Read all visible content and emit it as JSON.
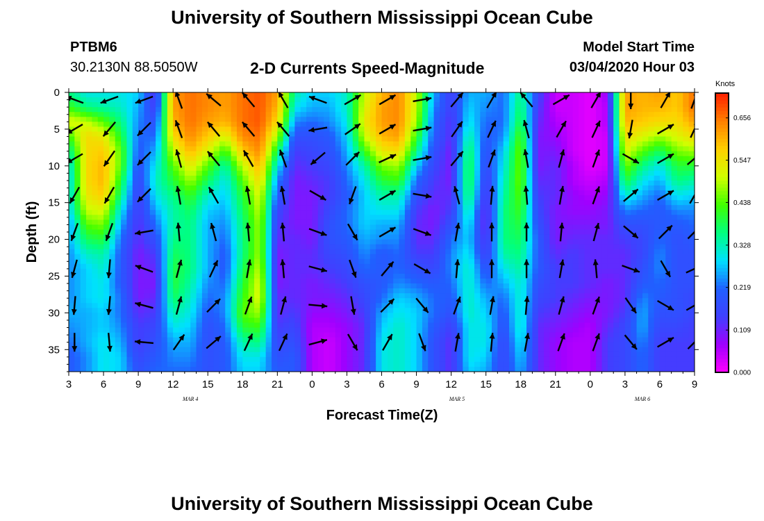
{
  "header": {
    "title": "University of Southern Mississippi Ocean Cube",
    "station_id": "PTBM6",
    "station_coords": "30.2130N 88.5050W",
    "plot_title": "2-D Currents Speed-Magnitude",
    "model_start_label": "Model Start Time",
    "model_start_value": "03/04/2020 Hour 03"
  },
  "footer": {
    "title": "University of Southern Mississippi Ocean Cube"
  },
  "colors": {
    "colormap": [
      "#ff00ff",
      "#a000ff",
      "#4040ff",
      "#2060ff",
      "#00e0ff",
      "#00ff80",
      "#40ff00",
      "#d0ff00",
      "#ffd000",
      "#ff8000",
      "#ff2000"
    ],
    "arrow": "#000000"
  },
  "chart_data": {
    "type": "heatmap",
    "xlabel": "Forecast Time(Z)",
    "ylabel": "Depth (ft)",
    "x_tick_labels": [
      "3",
      "6",
      "9",
      "12",
      "15",
      "18",
      "21",
      "0",
      "3",
      "6",
      "9",
      "12",
      "15",
      "18",
      "21",
      "0",
      "3",
      "6",
      "9"
    ],
    "x_range_hours": [
      3,
      57
    ],
    "date_labels": [
      {
        "text": "MAR 4",
        "hour": 13.5
      },
      {
        "text": "MAR 5",
        "hour": 36.5
      },
      {
        "text": "MAR 6",
        "hour": 52.5
      }
    ],
    "y_tick_labels": [
      "0",
      "5",
      "10",
      "15",
      "20",
      "25",
      "30",
      "35"
    ],
    "y_range_ft": [
      0,
      38
    ],
    "colorbar": {
      "unit": "Knots",
      "tick_labels": [
        "0.000",
        "0.109",
        "0.219",
        "0.328",
        "0.438",
        "0.547",
        "0.656"
      ],
      "range": [
        0,
        0.72
      ]
    },
    "time_hours": [
      3,
      4.5,
      6,
      7.5,
      9,
      10.5,
      12,
      13.5,
      15,
      16.5,
      18,
      19.5,
      21,
      22.5,
      24,
      25.5,
      27,
      28.5,
      30,
      31.5,
      33,
      34.5,
      36,
      37.5,
      39,
      40.5,
      42,
      43.5,
      45,
      46.5,
      48,
      49.5,
      51,
      52.5,
      54,
      55.5,
      57
    ],
    "depth_ft": [
      0,
      2,
      4,
      6,
      8,
      10,
      12,
      14,
      16,
      18,
      20,
      22,
      24,
      26,
      28,
      30,
      32,
      34,
      36,
      38
    ],
    "speed_knots": [
      [
        0.36,
        0.42,
        0.52,
        0.42,
        0.34,
        0.3,
        0.28,
        0.3,
        0.28,
        0.24,
        0.26,
        0.24,
        0.24,
        0.24,
        0.24,
        0.26,
        0.24,
        0.22,
        0.2,
        0.2
      ],
      [
        0.3,
        0.36,
        0.5,
        0.56,
        0.56,
        0.56,
        0.56,
        0.54,
        0.5,
        0.44,
        0.38,
        0.32,
        0.28,
        0.28,
        0.28,
        0.26,
        0.26,
        0.26,
        0.24,
        0.24
      ],
      [
        0.3,
        0.34,
        0.44,
        0.54,
        0.58,
        0.6,
        0.6,
        0.58,
        0.52,
        0.46,
        0.4,
        0.34,
        0.32,
        0.3,
        0.3,
        0.28,
        0.28,
        0.3,
        0.3,
        0.3
      ],
      [
        0.3,
        0.32,
        0.36,
        0.4,
        0.44,
        0.44,
        0.4,
        0.36,
        0.3,
        0.26,
        0.22,
        0.2,
        0.2,
        0.2,
        0.22,
        0.22,
        0.24,
        0.26,
        0.28,
        0.28
      ],
      [
        0.28,
        0.26,
        0.24,
        0.22,
        0.2,
        0.18,
        0.16,
        0.14,
        0.14,
        0.12,
        0.12,
        0.1,
        0.1,
        0.1,
        0.1,
        0.12,
        0.14,
        0.14,
        0.16,
        0.18
      ],
      [
        0.12,
        0.14,
        0.18,
        0.22,
        0.26,
        0.3,
        0.32,
        0.3,
        0.26,
        0.22,
        0.18,
        0.14,
        0.12,
        0.1,
        0.12,
        0.14,
        0.16,
        0.18,
        0.2,
        0.22
      ],
      [
        0.62,
        0.62,
        0.6,
        0.56,
        0.5,
        0.44,
        0.4,
        0.36,
        0.34,
        0.34,
        0.36,
        0.38,
        0.4,
        0.4,
        0.38,
        0.34,
        0.3,
        0.26,
        0.24,
        0.22
      ],
      [
        0.66,
        0.66,
        0.66,
        0.64,
        0.6,
        0.54,
        0.48,
        0.42,
        0.38,
        0.36,
        0.36,
        0.36,
        0.36,
        0.34,
        0.32,
        0.3,
        0.28,
        0.26,
        0.24,
        0.22
      ],
      [
        0.64,
        0.64,
        0.62,
        0.58,
        0.52,
        0.44,
        0.38,
        0.32,
        0.28,
        0.26,
        0.26,
        0.26,
        0.26,
        0.24,
        0.22,
        0.2,
        0.18,
        0.18,
        0.18,
        0.18
      ],
      [
        0.62,
        0.62,
        0.6,
        0.52,
        0.42,
        0.34,
        0.3,
        0.28,
        0.26,
        0.24,
        0.22,
        0.2,
        0.2,
        0.22,
        0.24,
        0.24,
        0.22,
        0.2,
        0.2,
        0.2
      ],
      [
        0.66,
        0.66,
        0.66,
        0.64,
        0.58,
        0.5,
        0.44,
        0.4,
        0.38,
        0.36,
        0.36,
        0.36,
        0.38,
        0.4,
        0.42,
        0.44,
        0.4,
        0.34,
        0.3,
        0.28
      ],
      [
        0.68,
        0.68,
        0.68,
        0.66,
        0.64,
        0.6,
        0.56,
        0.52,
        0.5,
        0.48,
        0.48,
        0.48,
        0.5,
        0.52,
        0.52,
        0.48,
        0.42,
        0.36,
        0.3,
        0.28
      ],
      [
        0.62,
        0.6,
        0.56,
        0.48,
        0.38,
        0.3,
        0.24,
        0.2,
        0.16,
        0.14,
        0.12,
        0.1,
        0.1,
        0.1,
        0.12,
        0.12,
        0.14,
        0.16,
        0.18,
        0.2
      ],
      [
        0.34,
        0.3,
        0.24,
        0.18,
        0.14,
        0.12,
        0.1,
        0.1,
        0.1,
        0.1,
        0.12,
        0.12,
        0.12,
        0.12,
        0.12,
        0.14,
        0.16,
        0.18,
        0.2,
        0.2
      ],
      [
        0.28,
        0.26,
        0.22,
        0.18,
        0.16,
        0.14,
        0.12,
        0.1,
        0.1,
        0.1,
        0.1,
        0.12,
        0.12,
        0.1,
        0.1,
        0.08,
        0.06,
        0.06,
        0.06,
        0.06
      ],
      [
        0.28,
        0.26,
        0.24,
        0.2,
        0.18,
        0.16,
        0.14,
        0.14,
        0.16,
        0.18,
        0.18,
        0.16,
        0.14,
        0.12,
        0.1,
        0.08,
        0.06,
        0.04,
        0.04,
        0.04
      ],
      [
        0.32,
        0.32,
        0.3,
        0.28,
        0.26,
        0.24,
        0.22,
        0.2,
        0.22,
        0.22,
        0.2,
        0.18,
        0.16,
        0.14,
        0.12,
        0.1,
        0.08,
        0.08,
        0.08,
        0.08
      ],
      [
        0.5,
        0.52,
        0.54,
        0.5,
        0.42,
        0.34,
        0.3,
        0.28,
        0.28,
        0.28,
        0.26,
        0.24,
        0.22,
        0.18,
        0.16,
        0.14,
        0.12,
        0.12,
        0.12,
        0.12
      ],
      [
        0.6,
        0.62,
        0.62,
        0.6,
        0.54,
        0.46,
        0.4,
        0.34,
        0.3,
        0.26,
        0.24,
        0.2,
        0.2,
        0.2,
        0.22,
        0.26,
        0.28,
        0.3,
        0.3,
        0.3
      ],
      [
        0.64,
        0.64,
        0.64,
        0.62,
        0.56,
        0.48,
        0.42,
        0.34,
        0.3,
        0.26,
        0.24,
        0.22,
        0.22,
        0.24,
        0.28,
        0.3,
        0.32,
        0.32,
        0.32,
        0.32
      ],
      [
        0.5,
        0.5,
        0.48,
        0.42,
        0.36,
        0.28,
        0.22,
        0.18,
        0.14,
        0.12,
        0.12,
        0.14,
        0.18,
        0.22,
        0.26,
        0.28,
        0.28,
        0.28,
        0.28,
        0.28
      ],
      [
        0.26,
        0.24,
        0.22,
        0.2,
        0.18,
        0.16,
        0.14,
        0.12,
        0.1,
        0.1,
        0.12,
        0.14,
        0.16,
        0.2,
        0.22,
        0.22,
        0.2,
        0.18,
        0.18,
        0.18
      ],
      [
        0.14,
        0.14,
        0.12,
        0.12,
        0.1,
        0.1,
        0.1,
        0.12,
        0.14,
        0.18,
        0.22,
        0.24,
        0.24,
        0.22,
        0.2,
        0.18,
        0.14,
        0.12,
        0.12,
        0.12
      ],
      [
        0.26,
        0.28,
        0.3,
        0.34,
        0.38,
        0.4,
        0.4,
        0.38,
        0.34,
        0.3,
        0.28,
        0.3,
        0.32,
        0.32,
        0.32,
        0.32,
        0.3,
        0.3,
        0.3,
        0.28
      ],
      [
        0.26,
        0.24,
        0.22,
        0.2,
        0.18,
        0.16,
        0.14,
        0.12,
        0.1,
        0.1,
        0.12,
        0.14,
        0.18,
        0.22,
        0.26,
        0.28,
        0.3,
        0.3,
        0.28,
        0.26
      ],
      [
        0.22,
        0.22,
        0.22,
        0.24,
        0.28,
        0.3,
        0.32,
        0.34,
        0.36,
        0.36,
        0.36,
        0.34,
        0.3,
        0.26,
        0.22,
        0.2,
        0.18,
        0.16,
        0.16,
        0.16
      ],
      [
        0.36,
        0.38,
        0.4,
        0.44,
        0.46,
        0.46,
        0.46,
        0.44,
        0.42,
        0.4,
        0.38,
        0.36,
        0.34,
        0.32,
        0.32,
        0.32,
        0.32,
        0.3,
        0.28,
        0.26
      ],
      [
        0.16,
        0.14,
        0.12,
        0.1,
        0.1,
        0.1,
        0.12,
        0.14,
        0.16,
        0.18,
        0.2,
        0.2,
        0.2,
        0.18,
        0.16,
        0.14,
        0.12,
        0.12,
        0.12,
        0.12
      ],
      [
        0.04,
        0.04,
        0.06,
        0.08,
        0.1,
        0.12,
        0.12,
        0.12,
        0.1,
        0.1,
        0.1,
        0.12,
        0.14,
        0.14,
        0.14,
        0.12,
        0.1,
        0.08,
        0.08,
        0.08
      ],
      [
        0.04,
        0.04,
        0.04,
        0.04,
        0.04,
        0.06,
        0.06,
        0.08,
        0.08,
        0.1,
        0.12,
        0.14,
        0.14,
        0.14,
        0.12,
        0.1,
        0.08,
        0.06,
        0.06,
        0.06
      ],
      [
        0.02,
        0.02,
        0.02,
        0.02,
        0.02,
        0.02,
        0.04,
        0.06,
        0.08,
        0.1,
        0.12,
        0.12,
        0.12,
        0.12,
        0.1,
        0.08,
        0.06,
        0.06,
        0.06,
        0.06
      ],
      [
        0.08,
        0.06,
        0.06,
        0.04,
        0.04,
        0.04,
        0.06,
        0.08,
        0.1,
        0.1,
        0.12,
        0.12,
        0.12,
        0.1,
        0.1,
        0.1,
        0.12,
        0.14,
        0.14,
        0.14
      ],
      [
        0.62,
        0.62,
        0.6,
        0.56,
        0.52,
        0.46,
        0.4,
        0.32,
        0.24,
        0.18,
        0.14,
        0.12,
        0.12,
        0.12,
        0.12,
        0.14,
        0.16,
        0.16,
        0.16,
        0.16
      ],
      [
        0.6,
        0.6,
        0.58,
        0.52,
        0.44,
        0.36,
        0.3,
        0.26,
        0.22,
        0.18,
        0.16,
        0.16,
        0.18,
        0.2,
        0.24,
        0.26,
        0.26,
        0.24,
        0.22,
        0.22
      ],
      [
        0.62,
        0.6,
        0.56,
        0.48,
        0.38,
        0.3,
        0.26,
        0.22,
        0.2,
        0.2,
        0.22,
        0.24,
        0.24,
        0.22,
        0.2,
        0.18,
        0.16,
        0.14,
        0.14,
        0.14
      ],
      [
        0.58,
        0.58,
        0.56,
        0.52,
        0.46,
        0.4,
        0.36,
        0.3,
        0.24,
        0.2,
        0.18,
        0.18,
        0.18,
        0.18,
        0.18,
        0.18,
        0.16,
        0.14,
        0.14,
        0.14
      ],
      [
        0.66,
        0.66,
        0.62,
        0.56,
        0.48,
        0.4,
        0.34,
        0.28,
        0.24,
        0.22,
        0.2,
        0.18,
        0.18,
        0.18,
        0.16,
        0.16,
        0.14,
        0.14,
        0.14,
        0.14
      ]
    ],
    "vector_times": [
      3.5,
      6.5,
      9.5,
      12.5,
      15.5,
      18.5,
      21.5,
      24.5,
      27.5,
      30.5,
      33.5,
      36.5,
      39.5,
      42.5,
      45.5,
      48.5,
      51.5,
      54.5,
      57
    ],
    "vector_depths": [
      1,
      5,
      9,
      14,
      19,
      24,
      29,
      34
    ],
    "vector_directions_deg": [
      [
        290,
        240,
        240,
        210,
        200,
        195,
        185,
        180
      ],
      [
        250,
        220,
        215,
        210,
        200,
        185,
        185,
        175
      ],
      [
        250,
        225,
        225,
        225,
        260,
        290,
        285,
        275
      ],
      [
        340,
        340,
        345,
        350,
        355,
        15,
        15,
        35
      ],
      [
        310,
        320,
        320,
        330,
        345,
        25,
        45,
        50
      ],
      [
        320,
        320,
        330,
        350,
        355,
        10,
        20,
        25
      ],
      [
        330,
        320,
        340,
        350,
        355,
        355,
        15,
        25
      ],
      [
        290,
        260,
        230,
        120,
        110,
        105,
        95,
        75
      ],
      [
        60,
        55,
        45,
        200,
        150,
        160,
        170,
        150
      ],
      [
        60,
        60,
        65,
        60,
        60,
        40,
        45,
        30
      ],
      [
        80,
        80,
        80,
        100,
        110,
        120,
        140,
        160
      ],
      [
        40,
        35,
        40,
        345,
        10,
        5,
        20,
        10
      ],
      [
        30,
        25,
        20,
        5,
        0,
        0,
        10,
        5
      ],
      [
        320,
        345,
        350,
        355,
        0,
        0,
        5,
        10
      ],
      [
        60,
        30,
        15,
        10,
        5,
        10,
        15,
        20
      ],
      [
        30,
        25,
        20,
        20,
        15,
        355,
        20,
        20
      ],
      [
        180,
        190,
        120,
        50,
        130,
        110,
        145,
        140
      ],
      [
        30,
        60,
        60,
        60,
        45,
        150,
        120,
        60
      ],
      [
        20,
        25,
        50,
        30,
        45,
        65,
        60,
        45
      ]
    ]
  }
}
